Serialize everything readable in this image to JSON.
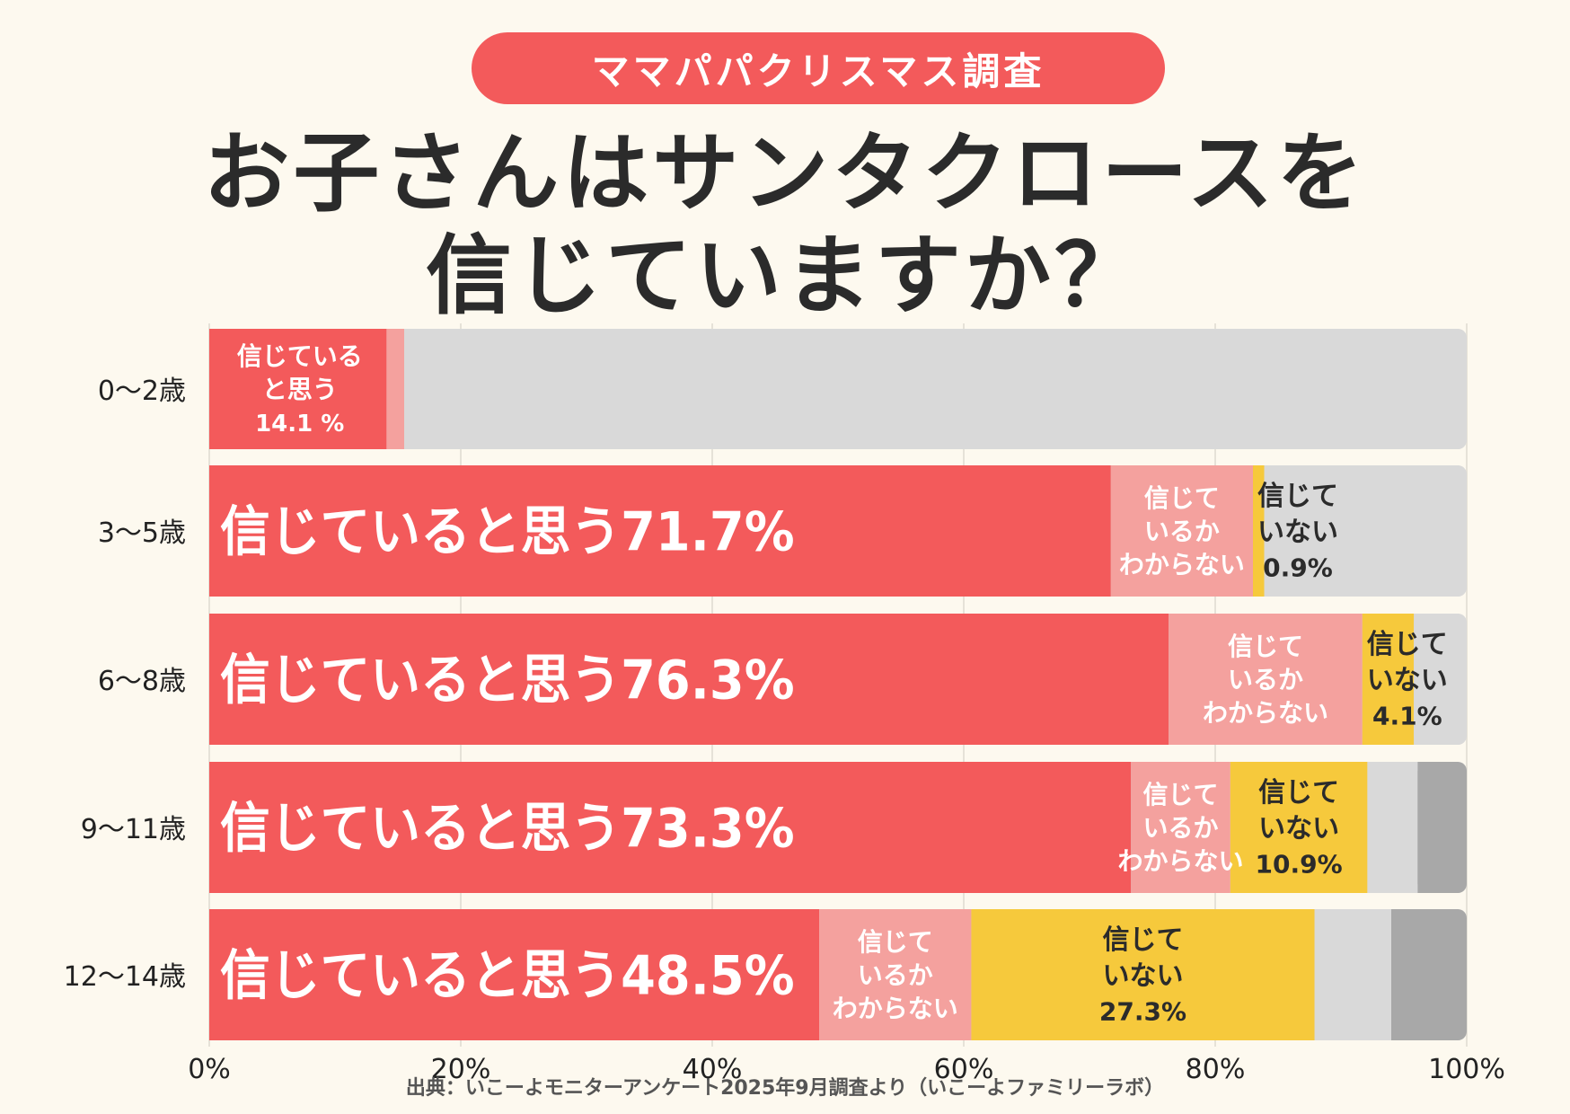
{
  "header": {
    "badge": "ママパパクリスマス調査",
    "title_line1": "お子さんはサンタクロースを",
    "title_line2": "信じていますか？"
  },
  "source": "出典：いこーよモニターアンケート2025年9月調査より（いこーよファミリーラボ）",
  "colors": {
    "believe": "#f35a5b",
    "unsure": "#f4a19e",
    "not_believe": "#f6c93c",
    "other_light": "#d9d9d9",
    "other_dark": "#a8a8a8",
    "grid": "#e6e2d8",
    "text_dark": "#2b2b2b"
  },
  "chart_data": {
    "type": "bar",
    "orientation": "horizontal",
    "stacked": true,
    "xlim": [
      0,
      100
    ],
    "x_ticks": [
      "0%",
      "20%",
      "40%",
      "60%",
      "80%",
      "100%"
    ],
    "categories": [
      "0〜2歳",
      "3〜5歳",
      "6〜8歳",
      "9〜11歳",
      "12〜14歳"
    ],
    "series": [
      {
        "key": "believe",
        "values": [
          14.1,
          71.7,
          76.3,
          73.3,
          48.5
        ],
        "labels": [
          [
            "信じている",
            "と思う",
            "14.1 %"
          ],
          [
            "信じていると思う71.7%"
          ],
          [
            "信じていると思う76.3%"
          ],
          [
            "信じていると思う73.3%"
          ],
          [
            "信じていると思う48.5%"
          ]
        ]
      },
      {
        "key": "unsure",
        "values": [
          1.4,
          11.3,
          15.4,
          7.9,
          12.1
        ],
        "labels": [
          [],
          [
            "信じて",
            "いるか",
            "わからない"
          ],
          [
            "信じて",
            "いるか",
            "わからない"
          ],
          [
            "信じて",
            "いるか",
            "わからない"
          ],
          [
            "信じて",
            "いるか",
            "わからない"
          ]
        ]
      },
      {
        "key": "not_believe",
        "values": [
          0,
          0.9,
          4.1,
          10.9,
          27.3
        ],
        "labels": [
          [],
          [
            "信じて",
            "いない",
            "0.9%"
          ],
          [
            "信じて",
            "いない",
            "4.1%"
          ],
          [
            "信じて",
            "いない",
            "10.9%"
          ],
          [
            "信じて",
            "いない",
            "27.3%"
          ]
        ]
      },
      {
        "key": "other_light",
        "values": [
          84.5,
          16.1,
          4.2,
          4.0,
          6.1
        ],
        "labels": [
          [],
          [],
          [],
          [],
          []
        ]
      },
      {
        "key": "other_dark",
        "values": [
          0,
          0,
          0,
          3.9,
          6.0
        ],
        "labels": [
          [],
          [],
          [],
          [],
          []
        ]
      }
    ]
  }
}
